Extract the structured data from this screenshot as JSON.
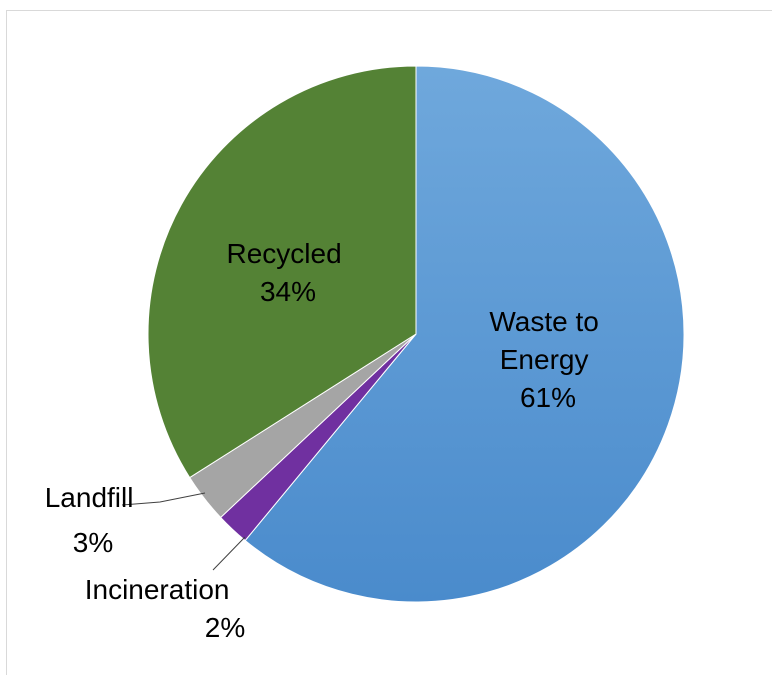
{
  "chart_data": {
    "type": "pie",
    "title": "",
    "slices": [
      {
        "label": "Waste to Energy",
        "label_lines": [
          "Waste to",
          "Energy"
        ],
        "value": 61,
        "value_text": "61%",
        "color": "#5b9bd5"
      },
      {
        "label": "Incineration",
        "label_lines": [
          "Incineration"
        ],
        "value": 2,
        "value_text": "2%",
        "color": "#7030a0"
      },
      {
        "label": "Landfill",
        "label_lines": [
          "Landfill"
        ],
        "value": 3,
        "value_text": "3%",
        "color": "#a5a5a5"
      },
      {
        "label": "Recycled",
        "label_lines": [
          "Recycled"
        ],
        "value": 34,
        "value_text": "34%",
        "color": "#548235"
      }
    ],
    "start_angle": "12 o'clock",
    "direction": "clockwise",
    "legend": "none",
    "data_labels": "category name and percentage"
  }
}
